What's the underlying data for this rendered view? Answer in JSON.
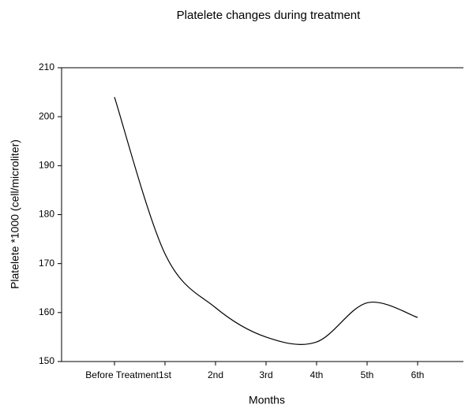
{
  "chart_data": {
    "type": "line",
    "title": "Platelete changes during treatment",
    "x_label": "Months",
    "y_label": "Platelete *1000 (cell/microliter)",
    "categories": [
      "Before Treatment",
      "1st",
      "2nd",
      "3rd",
      "4th",
      "5th",
      "6th"
    ],
    "series": [
      {
        "name": "Platelete",
        "color": "#000000",
        "values": [
          204,
          172,
          161,
          155,
          154,
          162,
          159
        ]
      }
    ],
    "ylim": [
      150,
      210
    ],
    "yticks": [
      150,
      160,
      170,
      180,
      190,
      200,
      210
    ],
    "smooth": true
  }
}
